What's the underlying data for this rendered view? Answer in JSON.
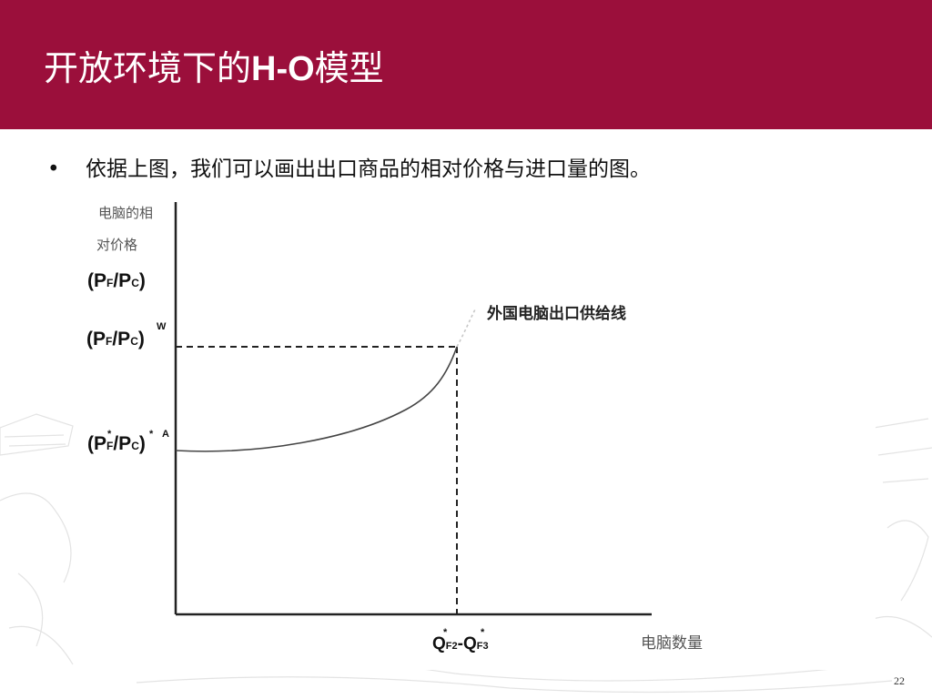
{
  "slide": {
    "title_cn": "开放环境下的",
    "title_latin": "H-O",
    "title_suffix": "模型",
    "bullet_text": "依据上图，我们可以画出出口商品的相对价格与进口量的图。",
    "page_number": "22"
  },
  "diagram": {
    "y_label_line1": "电脑的相",
    "y_label_line2": "对价格",
    "y_var_main": "(P",
    "y_var_sub_f": "F",
    "y_var_slash": "/P",
    "y_var_sub_c": "C",
    "y_var_close": ")",
    "price_world_sup": "W",
    "price_autarky_sup": "A",
    "star": "*",
    "curve_label": "外国电脑出口供给线",
    "x_label": "电脑数量",
    "x_tick_q": "Q",
    "x_tick_sub1": "F2",
    "x_tick_dash": "-",
    "x_tick_sub2": "F3"
  },
  "colors": {
    "header_bg": "#9b0f3b",
    "title_text": "#ffffff",
    "line": "#222222"
  }
}
